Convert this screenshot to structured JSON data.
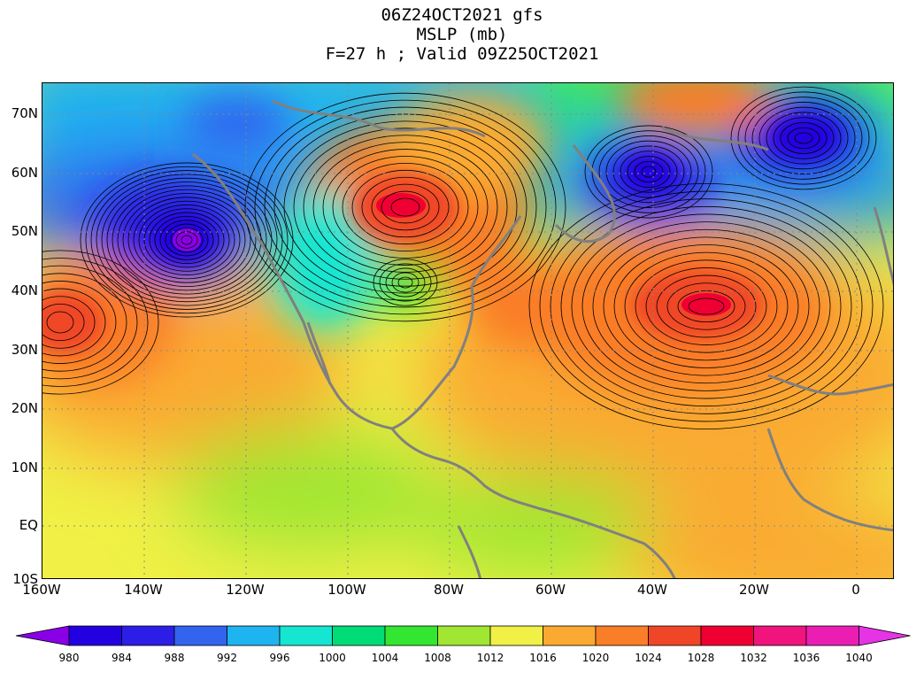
{
  "title": {
    "line1": "06Z24OCT2021 gfs",
    "line2": "MSLP (mb)",
    "line3": "F=27 h ; Valid 09Z25OCT2021"
  },
  "map": {
    "variable": "MSLP",
    "units": "mb",
    "contour_interval": 1,
    "lat_labels": [
      "70N",
      "60N",
      "50N",
      "40N",
      "30N",
      "20N",
      "10N",
      "EQ",
      "10S"
    ],
    "lon_labels": [
      "160W",
      "140W",
      "120W",
      "100W",
      "80W",
      "60W",
      "40W",
      "20W",
      "0"
    ],
    "coastline_color": "#808080",
    "gridline_style": "dotted"
  },
  "colorbar": {
    "levels": [
      "980",
      "984",
      "988",
      "992",
      "996",
      "1000",
      "1004",
      "1008",
      "1012",
      "1016",
      "1020",
      "1024",
      "1028",
      "1032",
      "1036",
      "1040"
    ],
    "colors": [
      "#8a00e6",
      "#2300e0",
      "#2c1ee6",
      "#3264f0",
      "#1eb4f0",
      "#14e6d2",
      "#00dc78",
      "#32e632",
      "#a0e632",
      "#f0f046",
      "#faaa32",
      "#fa7d28",
      "#f04628",
      "#f00032",
      "#f0147d",
      "#eb1eb4",
      "#e633e6"
    ]
  }
}
